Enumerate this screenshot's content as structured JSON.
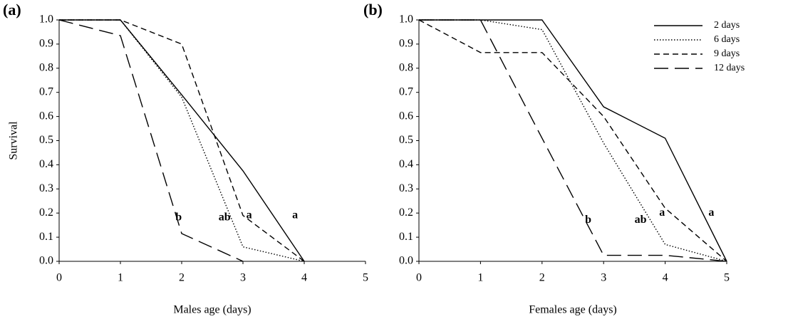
{
  "chart_data": [
    {
      "type": "line",
      "title": "(a)",
      "xlabel": "Males age (days)",
      "ylabel": "Survival",
      "x": [
        0,
        1,
        2,
        3,
        4
      ],
      "xlim": [
        0,
        5
      ],
      "xticks": [
        0,
        1,
        2,
        3,
        4,
        5
      ],
      "ylim": [
        0,
        1
      ],
      "yticks": [
        {
          "value": 0,
          "label": "0.0"
        },
        0.1,
        0.2,
        0.3,
        0.4,
        0.5,
        0.6,
        0.7,
        0.8,
        0.9,
        {
          "value": 1,
          "label": "1.0"
        }
      ],
      "series": [
        {
          "name": "2 days",
          "color": "#000000",
          "linestyle": "solid",
          "values": [
            1,
            1,
            0.69,
            0.375,
            0
          ]
        },
        {
          "name": "6 days",
          "color": "#000000",
          "linestyle": "dotted",
          "values": [
            1,
            1,
            0.68,
            0.06,
            0
          ]
        },
        {
          "name": "9 days",
          "color": "#000000",
          "linestyle": "dashed",
          "values": [
            1,
            1,
            0.9,
            0.19,
            0
          ]
        },
        {
          "name": "12 days",
          "color": "#000000",
          "linestyle": "longdash",
          "values": [
            1,
            0.935,
            0.115,
            0,
            null
          ]
        }
      ],
      "annotations": [
        {
          "text": "b",
          "x": 1.95,
          "y": 0.18
        },
        {
          "text": "ab",
          "x": 2.7,
          "y": 0.18
        },
        {
          "text": "a",
          "x": 3.1,
          "y": 0.19
        },
        {
          "text": "a",
          "x": 3.85,
          "y": 0.19
        }
      ]
    },
    {
      "type": "line",
      "title": "(b)",
      "xlabel": "Females age (days)",
      "x": [
        0,
        1,
        2,
        3,
        4,
        5
      ],
      "xlim": [
        0,
        5
      ],
      "xticks": [
        0,
        1,
        2,
        3,
        4,
        5
      ],
      "ylim": [
        0,
        1
      ],
      "yticks": [
        {
          "value": 0,
          "label": "0.0"
        },
        0.1,
        0.2,
        0.3,
        0.4,
        0.5,
        0.6,
        0.7,
        0.8,
        0.9,
        {
          "value": 1,
          "label": "1.0"
        }
      ],
      "legend": "upper right",
      "series": [
        {
          "name": "2 days",
          "color": "#000000",
          "linestyle": "solid",
          "values": [
            1,
            1,
            1,
            0.64,
            0.51,
            0
          ]
        },
        {
          "name": "6 days",
          "color": "#000000",
          "linestyle": "dotted",
          "values": [
            1,
            1,
            0.96,
            0.49,
            0.07,
            0
          ]
        },
        {
          "name": "9 days",
          "color": "#000000",
          "linestyle": "dashed",
          "values": [
            1,
            0.865,
            0.865,
            0.6,
            0.22,
            0
          ]
        },
        {
          "name": "12 days",
          "color": "#000000",
          "linestyle": "longdash",
          "values": [
            1,
            1,
            0.51,
            0.025,
            0.025,
            0
          ]
        }
      ],
      "annotations": [
        {
          "text": "b",
          "x": 2.75,
          "y": 0.17
        },
        {
          "text": "ab",
          "x": 3.6,
          "y": 0.17
        },
        {
          "text": "a",
          "x": 3.95,
          "y": 0.2
        },
        {
          "text": "a",
          "x": 4.75,
          "y": 0.2
        }
      ]
    }
  ]
}
